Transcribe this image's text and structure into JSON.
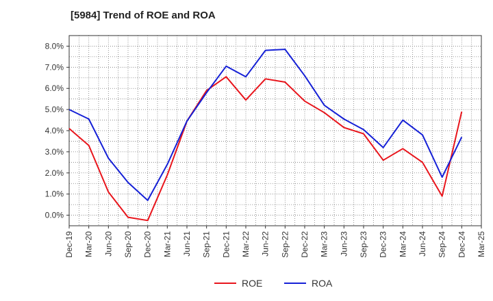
{
  "chart_data": {
    "type": "line",
    "title": "[5984]  Trend of ROE and ROA",
    "categories": [
      "Dec-19",
      "Mar-20",
      "Jun-20",
      "Sep-20",
      "Dec-20",
      "Mar-21",
      "Jun-21",
      "Sep-21",
      "Dec-21",
      "Mar-22",
      "Jun-22",
      "Sep-22",
      "Dec-22",
      "Mar-23",
      "Jun-23",
      "Sep-23",
      "Dec-23",
      "Mar-24",
      "Jun-24",
      "Sep-24",
      "Dec-24",
      "Mar-25"
    ],
    "x_tick_labels": [
      "Dec-19",
      "Mar-20",
      "Jun-20",
      "Sep-20",
      "Dec-20",
      "Mar-21",
      "Jun-21",
      "Sep-21",
      "Dec-21",
      "Mar-22",
      "Jun-22",
      "Sep-22",
      "Dec-22",
      "Mar-23",
      "Jun-23",
      "Sep-23",
      "Dec-23",
      "Mar-24",
      "Jun-24",
      "Sep-24",
      "Dec-24",
      "Mar-25"
    ],
    "y_tick_labels": [
      "0.0%",
      "1.0%",
      "2.0%",
      "3.0%",
      "4.0%",
      "5.0%",
      "6.0%",
      "7.0%",
      "8.0%"
    ],
    "ylim": [
      -0.5,
      8.5
    ],
    "series": [
      {
        "name": "ROE",
        "color": "#e8141b",
        "values": [
          4.1,
          3.3,
          1.1,
          -0.1,
          -0.25,
          1.9,
          4.45,
          5.9,
          6.55,
          5.45,
          6.45,
          6.3,
          5.4,
          4.85,
          4.15,
          3.85,
          2.6,
          3.15,
          2.5,
          0.9,
          4.9,
          null
        ]
      },
      {
        "name": "ROA",
        "color": "#1520d6",
        "values": [
          5.0,
          4.55,
          2.7,
          1.55,
          0.7,
          2.4,
          4.45,
          5.8,
          7.05,
          6.55,
          7.8,
          7.85,
          6.6,
          5.2,
          4.55,
          4.05,
          3.2,
          4.5,
          3.8,
          1.8,
          3.7,
          null
        ]
      }
    ],
    "grid": true,
    "legend_position": "bottom-center"
  }
}
